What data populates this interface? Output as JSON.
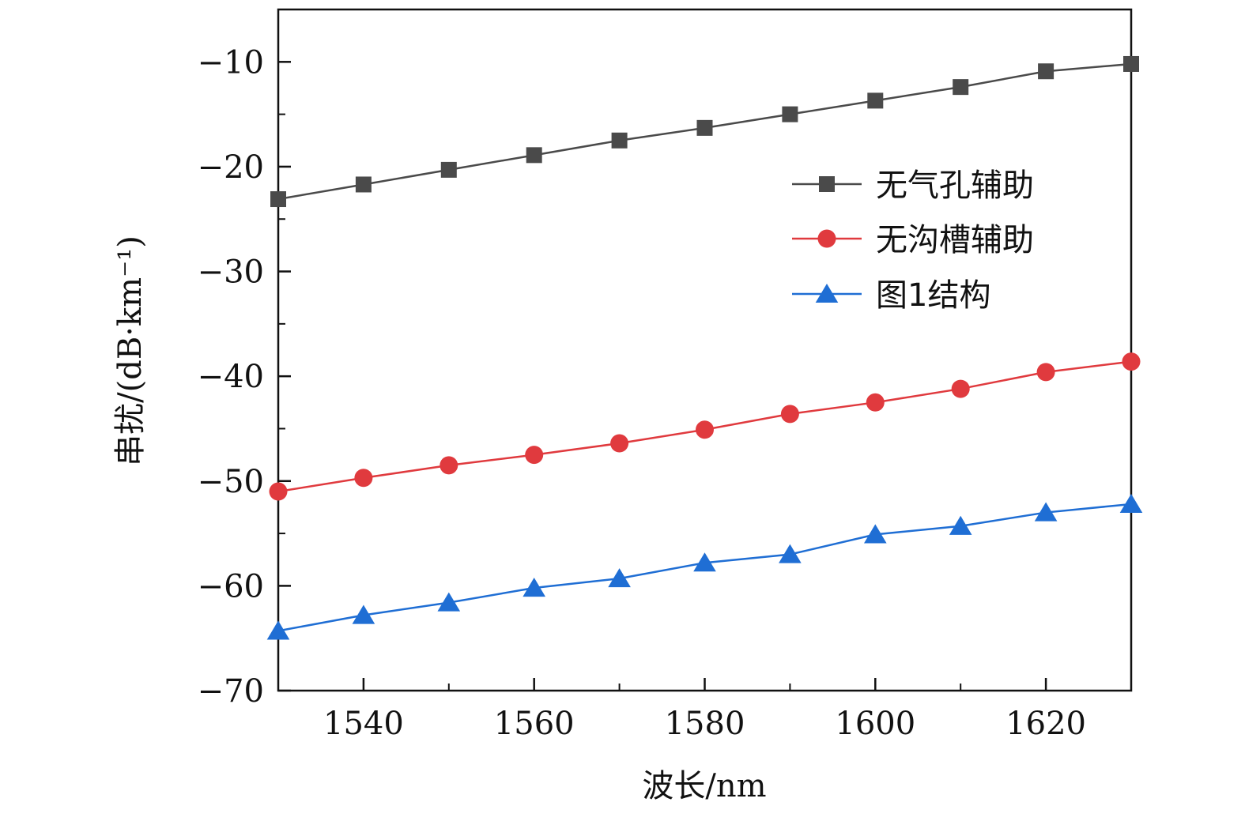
{
  "chart_data": {
    "type": "line",
    "xlabel": "波长/nm",
    "ylabel": "串扰/(dB·km⁻¹)",
    "xlim": [
      1530,
      1630
    ],
    "ylim": [
      -70,
      -5
    ],
    "x_ticks": [
      1540,
      1560,
      1580,
      1600,
      1620
    ],
    "x_tick_labels": [
      "1540",
      "1560",
      "1580",
      "1600",
      "1620"
    ],
    "y_ticks": [
      -10,
      -20,
      -30,
      -40,
      -50,
      -60,
      -70
    ],
    "y_tick_labels": [
      "−10",
      "−20",
      "−30",
      "−40",
      "−50",
      "−60",
      "−70"
    ],
    "x": [
      1530,
      1540,
      1550,
      1560,
      1570,
      1580,
      1590,
      1600,
      1610,
      1620,
      1630
    ],
    "series": [
      {
        "name": "无气孔辅助",
        "color": "#4a4a4a",
        "marker": "square",
        "values": [
          -23.1,
          -21.7,
          -20.3,
          -18.9,
          -17.5,
          -16.3,
          -15.0,
          -13.7,
          -12.4,
          -10.9,
          -10.2
        ]
      },
      {
        "name": "无沟槽辅助",
        "color": "#e03a3e",
        "marker": "circle",
        "values": [
          -51.0,
          -49.7,
          -48.5,
          -47.5,
          -46.4,
          -45.1,
          -43.6,
          -42.5,
          -41.2,
          -39.6,
          -38.6
        ]
      },
      {
        "name": "图1结构",
        "color": "#1f6ed4",
        "marker": "triangle",
        "values": [
          -64.3,
          -62.8,
          -61.6,
          -60.2,
          -59.3,
          -57.8,
          -57.0,
          -55.1,
          -54.3,
          -53.0,
          -52.2
        ]
      }
    ],
    "grid": false,
    "legend_position": "upper-right"
  }
}
